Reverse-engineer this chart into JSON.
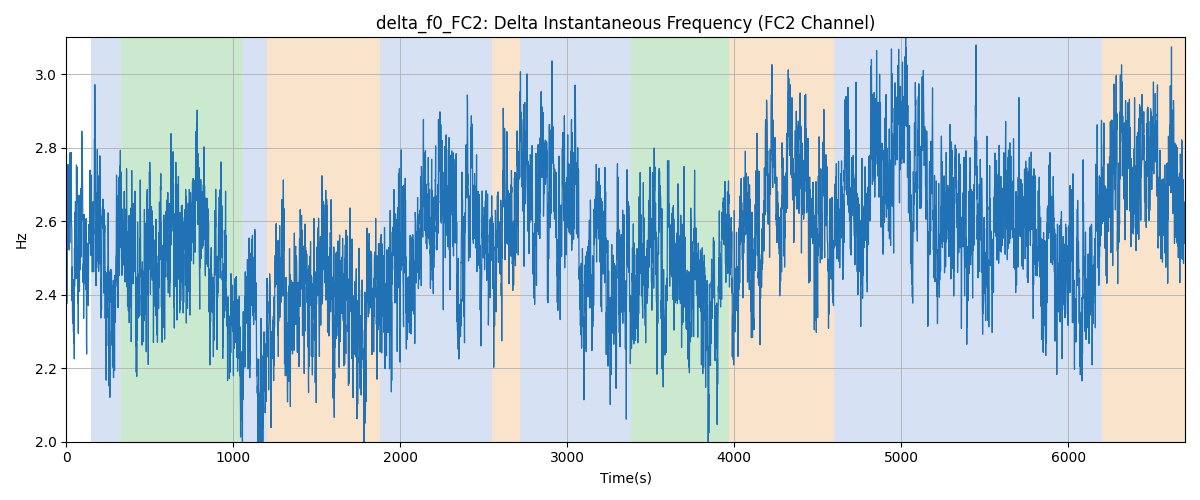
{
  "title": "delta_f0_FC2: Delta Instantaneous Frequency (FC2 Channel)",
  "xlabel": "Time(s)",
  "ylabel": "Hz",
  "ylim": [
    2.0,
    3.1
  ],
  "xlim": [
    0,
    6700
  ],
  "line_color": "#2171b5",
  "line_width": 0.9,
  "seed": 12345,
  "n_points": 6700,
  "bands": [
    {
      "xmin": 150,
      "xmax": 330,
      "color": "#aec6e8",
      "alpha": 0.5
    },
    {
      "xmin": 330,
      "xmax": 1050,
      "color": "#98d49e",
      "alpha": 0.5
    },
    {
      "xmin": 1050,
      "xmax": 1200,
      "color": "#aec6e8",
      "alpha": 0.5
    },
    {
      "xmin": 1200,
      "xmax": 1880,
      "color": "#f5c897",
      "alpha": 0.5
    },
    {
      "xmin": 1880,
      "xmax": 2550,
      "color": "#aec6e8",
      "alpha": 0.5
    },
    {
      "xmin": 2550,
      "xmax": 2720,
      "color": "#f5c897",
      "alpha": 0.5
    },
    {
      "xmin": 2720,
      "xmax": 3380,
      "color": "#aec6e8",
      "alpha": 0.5
    },
    {
      "xmin": 3380,
      "xmax": 3970,
      "color": "#98d49e",
      "alpha": 0.5
    },
    {
      "xmin": 3970,
      "xmax": 4600,
      "color": "#f5c897",
      "alpha": 0.5
    },
    {
      "xmin": 4600,
      "xmax": 6200,
      "color": "#aec6e8",
      "alpha": 0.5
    },
    {
      "xmin": 6200,
      "xmax": 6700,
      "color": "#f5c897",
      "alpha": 0.5
    }
  ]
}
